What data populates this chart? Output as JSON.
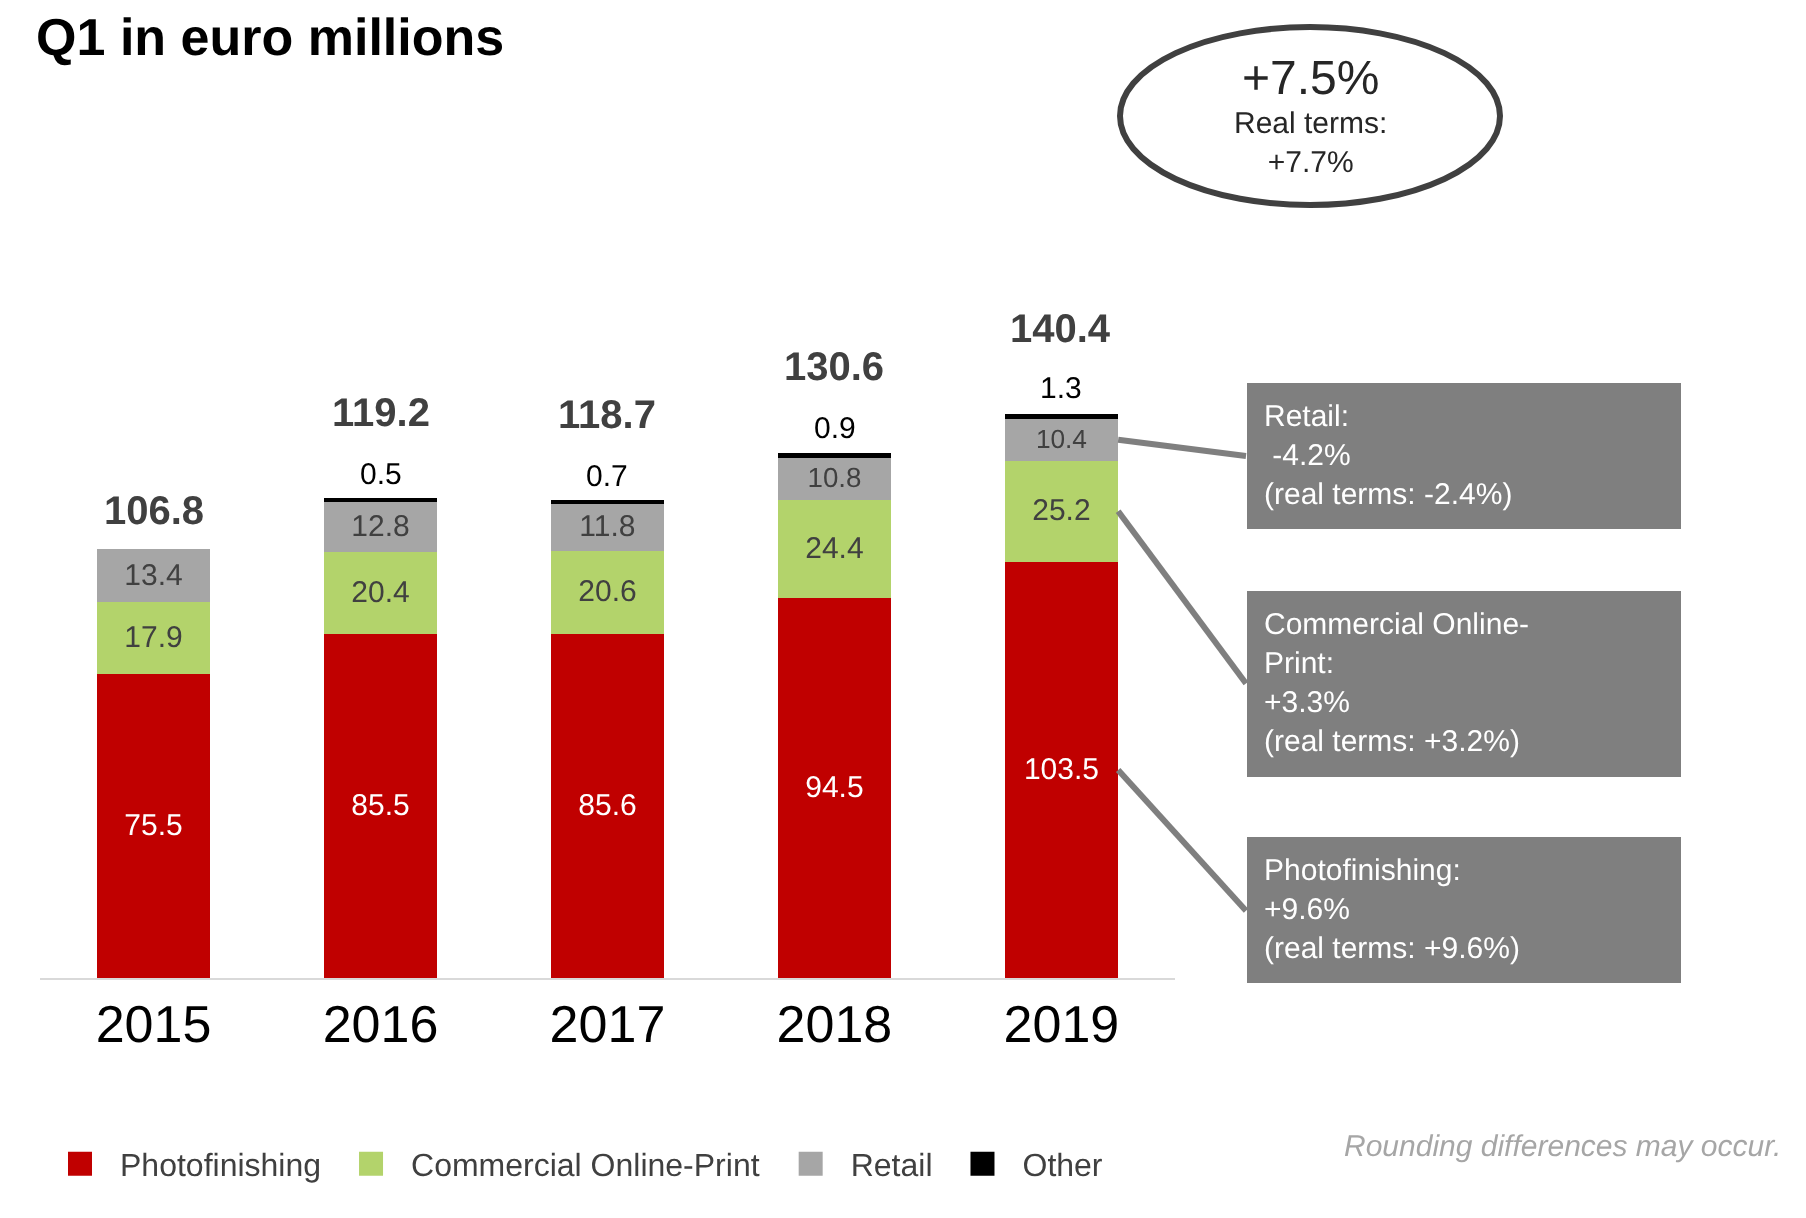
{
  "chart_data": {
    "type": "bar",
    "title": "Q1 in euro millions",
    "stacked": true,
    "data_labels": true,
    "legend": "bottom",
    "categories": [
      "2015",
      "2016",
      "2017",
      "2018",
      "2019"
    ],
    "series": [
      {
        "name": "Photofinishing",
        "color": "#c00000",
        "values": [
          75.5,
          85.5,
          85.6,
          94.5,
          103.5
        ]
      },
      {
        "name": "Commercial Online-Print",
        "color": "#b3d36b",
        "values": [
          17.9,
          20.4,
          20.6,
          24.4,
          25.2
        ]
      },
      {
        "name": "Retail",
        "color": "#a6a6a6",
        "values": [
          13.4,
          12.8,
          11.8,
          10.8,
          10.4
        ]
      },
      {
        "name": "Other",
        "color": "#000000",
        "values": [
          null,
          0.5,
          0.7,
          0.9,
          1.3
        ]
      }
    ],
    "totals": [
      "106.8",
      "119.2",
      "118.7",
      "130.6",
      "140.4"
    ],
    "annotations": [
      "+7.5%\nReal terms:\n+7.7%",
      "Retail:\n -4.2%\n(real terms: -2.4%)",
      "Commercial Online-\nPrint:\n+3.3%\n(real terms: +3.2%)",
      "Photofinishing:\n+9.6%\n(real terms: +9.6%)",
      "Rounding differences may occur."
    ]
  }
}
